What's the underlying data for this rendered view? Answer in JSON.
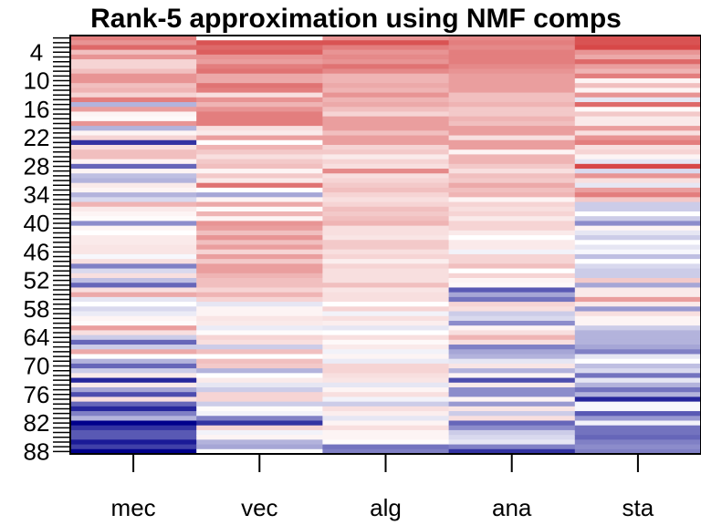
{
  "chart_data": {
    "type": "heatmap",
    "title": "Rank-5 approximation using NMF comps",
    "columns": [
      "mec",
      "vec",
      "alg",
      "ana",
      "sta"
    ],
    "rows": 88,
    "y_tick_labels": [
      "4",
      "10",
      "16",
      "22",
      "28",
      "34",
      "40",
      "46",
      "52",
      "58",
      "64",
      "70",
      "76",
      "82",
      "88"
    ],
    "color_scale": {
      "low": "#00008B",
      "mid": "#FFFFFF",
      "high": "#D02828",
      "range": [
        -1,
        1
      ]
    },
    "values": {
      "mec": [
        0.6,
        0.5,
        0.7,
        0.3,
        0.5,
        0.2,
        0.2,
        0.3,
        0.5,
        0.5,
        0.3,
        0.35,
        0.2,
        0.6,
        -0.3,
        0.45,
        0.05,
        0.03,
        0.5,
        -0.3,
        0.05,
        0.2,
        -0.8,
        0.15,
        0.3,
        0.3,
        0.05,
        -0.6,
        0.05,
        -0.25,
        -0.3,
        0.1,
        0.05,
        -0.3,
        -0.15,
        0.35,
        0.1,
        0.05,
        0.02,
        -0.45,
        0.05,
        0.0,
        0.1,
        0.1,
        0.12,
        0.12,
        -0.03,
        0.15,
        -0.5,
        -0.15,
        0.15,
        -0.25,
        -0.6,
        0.15,
        0.4,
        -0.1,
        0.0,
        -0.15,
        -0.08,
        0.05,
        0.02,
        0.45,
        0.15,
        -0.2,
        -0.6,
        -0.2,
        0.4,
        0.0,
        -0.3,
        -0.6,
        -0.2,
        0.1,
        -0.85,
        0.1,
        -0.35,
        -0.7,
        0.15,
        -0.6,
        -0.85,
        -0.5,
        -0.3,
        -1.0,
        -0.8,
        -0.65,
        -0.65,
        -0.9,
        -0.75,
        -1.0
      ],
      "vec": [
        0.0,
        0.8,
        0.7,
        0.75,
        0.5,
        0.45,
        0.6,
        0.65,
        0.4,
        0.4,
        0.65,
        0.6,
        0.15,
        0.5,
        0.35,
        0.5,
        0.6,
        0.6,
        0.6,
        0.15,
        0.1,
        0.45,
        0.0,
        0.35,
        0.25,
        0.15,
        0.25,
        0.3,
        0.05,
        0.25,
        0.1,
        0.65,
        0.0,
        -0.35,
        0.05,
        0.4,
        0.02,
        0.35,
        0.05,
        0.5,
        0.45,
        0.3,
        0.5,
        0.3,
        0.45,
        0.2,
        0.45,
        0.25,
        0.45,
        0.45,
        0.35,
        0.3,
        0.3,
        0.2,
        0.35,
        0.2,
        -0.1,
        0.05,
        0.05,
        0.12,
        0.1,
        -0.08,
        0.02,
        0.2,
        0.15,
        -0.2,
        0.3,
        0.0,
        0.3,
        0.25,
        -0.3,
        0.0,
        0.1,
        -0.1,
        -0.2,
        0.2,
        0.2,
        -0.2,
        0.02,
        -0.05,
        -0.5,
        -0.8,
        0.2,
        -0.05,
        0.05,
        -0.3,
        -0.35,
        0.0
      ],
      "alg": [
        0.5,
        0.8,
        0.6,
        0.5,
        0.55,
        0.5,
        0.65,
        0.55,
        0.35,
        0.35,
        0.4,
        0.35,
        0.5,
        0.35,
        0.4,
        0.3,
        0.2,
        0.45,
        0.45,
        0.45,
        0.3,
        0.45,
        0.45,
        0.2,
        0.25,
        0.1,
        0.2,
        0.15,
        0.55,
        0.15,
        0.2,
        0.25,
        0.3,
        0.2,
        0.15,
        0.2,
        0.3,
        0.25,
        0.3,
        0.35,
        0.15,
        0.15,
        0.12,
        0.25,
        0.25,
        0.15,
        0.2,
        0.08,
        0.2,
        0.15,
        0.15,
        0.15,
        0.3,
        0.12,
        0.15,
        0.15,
        0.0,
        0.2,
        -0.05,
        0.15,
        0.08,
        -0.1,
        0.0,
        0.15,
        0.03,
        0.1,
        -0.05,
        0.05,
        -0.08,
        0.2,
        0.2,
        0.15,
        0.12,
        -0.1,
        0.05,
        0.15,
        -0.05,
        -0.2,
        0.15,
        0.08,
        -0.1,
        0.05,
        0.15,
        0.05,
        0.05,
        0.02,
        -0.55,
        -0.5
      ],
      "ana": [
        0.55,
        0.6,
        0.55,
        0.6,
        0.6,
        0.6,
        0.55,
        0.5,
        0.45,
        0.45,
        0.45,
        0.45,
        0.3,
        0.3,
        0.35,
        0.25,
        0.25,
        0.35,
        0.3,
        0.45,
        0.45,
        0.15,
        0.45,
        0.45,
        0.05,
        0.35,
        0.35,
        0.25,
        0.15,
        0.3,
        0.25,
        0.4,
        0.3,
        0.35,
        0.05,
        0.2,
        0.15,
        0.2,
        0.1,
        0.2,
        0.2,
        0.1,
        0.0,
        0.1,
        0.1,
        -0.05,
        0.2,
        0.2,
        0.3,
        0.0,
        0.2,
        0.05,
        0.03,
        -0.65,
        -0.35,
        -0.55,
        0.2,
        0.15,
        -0.2,
        -0.15,
        -0.45,
        0.05,
        0.15,
        0.35,
        0.15,
        -0.5,
        -0.35,
        -0.3,
        -0.1,
        0.12,
        -0.3,
        0.05,
        -0.7,
        0.1,
        -0.45,
        -0.45,
        0.05,
        -0.4,
        0.12,
        -0.2,
        0.15,
        -0.6,
        -0.45,
        -0.2,
        -0.15,
        -0.1,
        -0.5,
        -0.8
      ],
      "sta": [
        0.8,
        0.8,
        0.85,
        0.5,
        0.4,
        0.7,
        0.45,
        0.35,
        0.6,
        0.05,
        0.3,
        0.05,
        0.5,
        -0.1,
        0.7,
        0.03,
        0.25,
        0.1,
        0.1,
        0.45,
        0.15,
        0.5,
        0.6,
        0.15,
        0.2,
        0.05,
        -0.1,
        0.85,
        -0.15,
        0.5,
        0.15,
        -0.1,
        0.45,
        0.6,
        0.25,
        -0.2,
        -0.2,
        0.0,
        -0.2,
        -0.45,
        0.05,
        -0.1,
        -0.2,
        0.0,
        -0.1,
        -0.03,
        -0.25,
        0.0,
        -0.15,
        -0.2,
        -0.2,
        0.25,
        -0.35,
        0.1,
        0.1,
        0.45,
        0.1,
        -0.4,
        0.15,
        0.05,
        0.05,
        -0.2,
        -0.3,
        -0.3,
        -0.3,
        -0.35,
        -0.5,
        -0.1,
        0.0,
        -0.25,
        -0.15,
        -0.55,
        -0.1,
        -0.3,
        -0.55,
        -0.3,
        -0.85,
        -0.03,
        -0.03,
        -0.65,
        -0.4,
        -0.05,
        -0.55,
        -0.55,
        -0.6,
        -0.5,
        -0.45,
        -0.5
      ]
    },
    "legend": "none",
    "grid": false
  }
}
